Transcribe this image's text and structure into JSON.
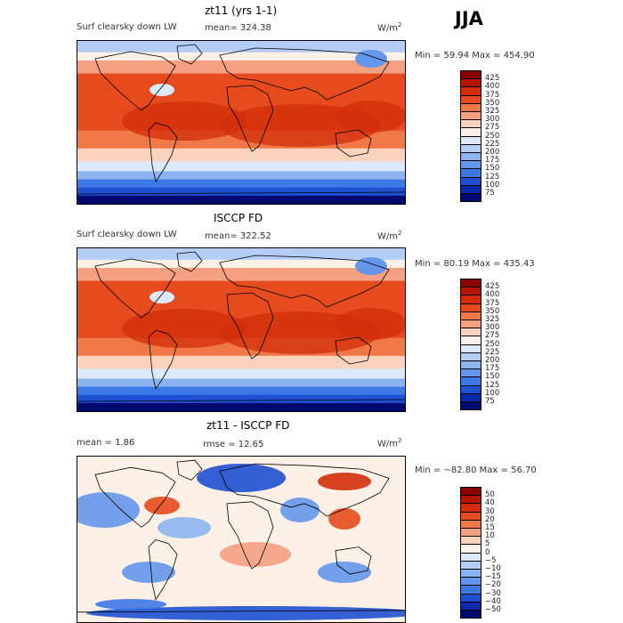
{
  "season": "JJA",
  "panels": [
    {
      "title": "zt11 (yrs 1-1)",
      "variable": "Surf clearsky down LW",
      "stat1": "mean= 324.38",
      "stat2": "",
      "units": "W/m",
      "units_sup": "2",
      "minmax": "Min =  59.94 Max = 454.90",
      "colorbar": {
        "levels": [
          "425",
          "400",
          "375",
          "350",
          "325",
          "300",
          "275",
          "250",
          "225",
          "200",
          "175",
          "150",
          "125",
          "100",
          "75"
        ],
        "colors": [
          "#8b0000",
          "#b41400",
          "#d22d0a",
          "#e64b1e",
          "#f07846",
          "#f5a082",
          "#fbd2be",
          "#fdf0e6",
          "#dce9fa",
          "#b4cdf5",
          "#8cb4f0",
          "#6496eb",
          "#3c78e6",
          "#1e50d2",
          "#0a28aa",
          "#000a6e"
        ]
      }
    },
    {
      "title": "ISCCP FD",
      "variable": "Surf clearsky down LW",
      "stat1": "mean= 322.52",
      "stat2": "",
      "units": "W/m",
      "units_sup": "2",
      "minmax": "Min =  80.19 Max = 435.43",
      "colorbar": {
        "levels": [
          "425",
          "400",
          "375",
          "350",
          "325",
          "300",
          "275",
          "250",
          "225",
          "200",
          "175",
          "150",
          "125",
          "100",
          "75"
        ],
        "colors": [
          "#8b0000",
          "#b41400",
          "#d22d0a",
          "#e64b1e",
          "#f07846",
          "#f5a082",
          "#fbd2be",
          "#fdf0e6",
          "#dce9fa",
          "#b4cdf5",
          "#8cb4f0",
          "#6496eb",
          "#3c78e6",
          "#1e50d2",
          "#0a28aa",
          "#000a6e"
        ]
      }
    },
    {
      "title": "zt11 - ISCCP FD",
      "variable": "",
      "stat1": "mean =    1.86",
      "stat2": "rmse =   12.65",
      "units": "W/m",
      "units_sup": "2",
      "minmax": "Min = −82.80 Max =  56.70",
      "colorbar": {
        "levels": [
          "50",
          "40",
          "30",
          "20",
          "15",
          "10",
          "5",
          "0",
          "−5",
          "−10",
          "−15",
          "−20",
          "−30",
          "−40",
          "−50"
        ],
        "colors": [
          "#8b0000",
          "#b41400",
          "#d22d0a",
          "#e64b1e",
          "#f07846",
          "#f5a082",
          "#fbd2be",
          "#fdf0e6",
          "#dce9fa",
          "#b4cdf5",
          "#8cb4f0",
          "#6496eb",
          "#3c78e6",
          "#1e50d2",
          "#0a28aa",
          "#000a6e"
        ]
      }
    }
  ],
  "chart_data": [
    {
      "type": "heatmap",
      "title": "zt11 (yrs 1-1)",
      "subtitle": "Surf clearsky down LW",
      "mean": 324.38,
      "min": 59.94,
      "max": 454.9,
      "units": "W/m2",
      "levels": [
        75,
        100,
        125,
        150,
        175,
        200,
        225,
        250,
        275,
        300,
        325,
        350,
        375,
        400,
        425
      ]
    },
    {
      "type": "heatmap",
      "title": "ISCCP FD",
      "subtitle": "Surf clearsky down LW",
      "mean": 322.52,
      "min": 80.19,
      "max": 435.43,
      "units": "W/m2",
      "levels": [
        75,
        100,
        125,
        150,
        175,
        200,
        225,
        250,
        275,
        300,
        325,
        350,
        375,
        400,
        425
      ]
    },
    {
      "type": "heatmap",
      "title": "zt11 - ISCCP FD",
      "mean": 1.86,
      "rmse": 12.65,
      "min": -82.8,
      "max": 56.7,
      "units": "W/m2",
      "levels": [
        -50,
        -40,
        -30,
        -20,
        -15,
        -10,
        -5,
        0,
        5,
        10,
        15,
        20,
        30,
        40,
        50
      ]
    }
  ]
}
